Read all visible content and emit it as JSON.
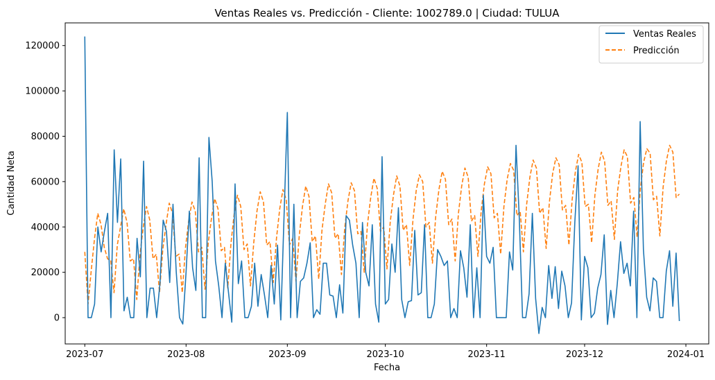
{
  "chart_data": {
    "type": "line",
    "title": "Ventas Reales vs. Predicción - Cliente: 1002789.0 | Ciudad: TULUA",
    "xlabel": "Fecha",
    "ylabel": "Cantidad Neta",
    "x_ticks": [
      "2023-07",
      "2023-08",
      "2023-09",
      "2023-10",
      "2023-11",
      "2023-12",
      "2024-01"
    ],
    "y_ticks": [
      "0",
      "20000",
      "40000",
      "60000",
      "80000",
      "100000",
      "120000"
    ],
    "y_tick_values": [
      0,
      20000,
      40000,
      60000,
      80000,
      100000,
      120000
    ],
    "ylim": [
      -11600,
      130000
    ],
    "x_start_date": "2023-07-01",
    "x_range_days": [
      -6,
      191
    ],
    "legend_position": "upper-right",
    "series": [
      {
        "name": "Ventas Reales",
        "color": "#1f77b4",
        "style": "solid",
        "values": [
          124000,
          0,
          0,
          6000,
          40000,
          29000,
          38000,
          46000,
          0,
          74000,
          42000,
          70000,
          3000,
          9000,
          0,
          0,
          35000,
          18000,
          69000,
          0,
          13000,
          13000,
          0,
          15000,
          43000,
          38000,
          15500,
          50000,
          20000,
          0,
          -2800,
          20000,
          47000,
          22000,
          12000,
          70500,
          0,
          0,
          79500,
          60000,
          25000,
          14000,
          0,
          24000,
          11000,
          -2000,
          59000,
          15000,
          25000,
          0,
          0,
          5000,
          24000,
          5000,
          19000,
          10000,
          0,
          23000,
          6000,
          32000,
          -1000,
          45000,
          90500,
          0,
          50000,
          0,
          16000,
          17500,
          24000,
          33000,
          0,
          3500,
          1500,
          24000,
          24000,
          10000,
          9500,
          0,
          14500,
          2000,
          45000,
          43000,
          32000,
          24000,
          0,
          42000,
          20000,
          14000,
          41000,
          6000,
          -2000,
          71000,
          6000,
          8000,
          32500,
          20000,
          48500,
          8000,
          0,
          7000,
          7500,
          38500,
          10000,
          11000,
          41000,
          0,
          0,
          6000,
          30000,
          27000,
          23000,
          25000,
          0,
          4000,
          0,
          29500,
          22000,
          9000,
          41000,
          0,
          22000,
          0,
          54000,
          27000,
          24000,
          31000,
          0,
          0,
          0,
          0,
          29000,
          21000,
          76000,
          44000,
          0,
          0,
          10500,
          46000,
          8500,
          -7000,
          4500,
          0,
          23000,
          8500,
          22500,
          4000,
          20500,
          14000,
          0,
          6500,
          42000,
          67000,
          -1000,
          27000,
          22000,
          0,
          2000,
          13000,
          19000,
          36500,
          -3000,
          12000,
          0,
          15000,
          33500,
          19500,
          24000,
          14000,
          47000,
          0,
          86500,
          30000,
          9000,
          3000,
          17500,
          16000,
          0,
          0,
          20500,
          29500,
          5000,
          28500,
          -1500
        ]
      },
      {
        "name": "Predicción",
        "color": "#ff7f0e",
        "style": "dashed",
        "values": [
          29000,
          6000,
          21000,
          35000,
          46000,
          41000,
          31000,
          26000,
          25000,
          11000,
          32000,
          40000,
          48000,
          42000,
          25000,
          26000,
          8000,
          28000,
          40000,
          49000,
          43000,
          26000,
          28000,
          11000,
          30000,
          41000,
          50500,
          46000,
          27000,
          28000,
          11000,
          31000,
          43000,
          51000,
          47000,
          29000,
          31000,
          12500,
          33000,
          44000,
          52500,
          48000,
          29500,
          31000,
          13000,
          33000,
          46000,
          54000,
          49000,
          30000,
          32500,
          14000,
          33000,
          47000,
          55500,
          51000,
          32000,
          33500,
          15500,
          35000,
          48000,
          56500,
          52000,
          32000,
          35000,
          16000,
          36000,
          49000,
          58000,
          53500,
          33500,
          36000,
          17000,
          38500,
          50000,
          59000,
          55000,
          35000,
          37000,
          19000,
          39500,
          51500,
          59500,
          56000,
          37000,
          38000,
          20000,
          41000,
          53000,
          61500,
          57000,
          38000,
          40000,
          21500,
          42000,
          54000,
          62500,
          58000,
          38500,
          41000,
          23000,
          43000,
          56000,
          63000,
          60000,
          40000,
          42000,
          24000,
          44500,
          56500,
          64500,
          61000,
          41000,
          43500,
          25000,
          46000,
          58000,
          66000,
          62000,
          42500,
          45000,
          27000,
          47000,
          59000,
          66500,
          63500,
          44000,
          46000,
          28000,
          49000,
          61000,
          68000,
          65000,
          45000,
          47000,
          29000,
          50000,
          62000,
          69500,
          66000,
          46000,
          48500,
          30500,
          51000,
          63500,
          70500,
          67500,
          47500,
          49500,
          32000,
          52000,
          64500,
          72000,
          68500,
          49000,
          50000,
          33000,
          54000,
          65500,
          73000,
          69000,
          49500,
          51500,
          34500,
          56000,
          66500,
          74000,
          71000,
          50500,
          53000,
          35500,
          57000,
          68500,
          74500,
          72500,
          52000,
          53500,
          36000,
          57500,
          69000,
          76000,
          73000,
          53000,
          54500
        ]
      }
    ]
  }
}
